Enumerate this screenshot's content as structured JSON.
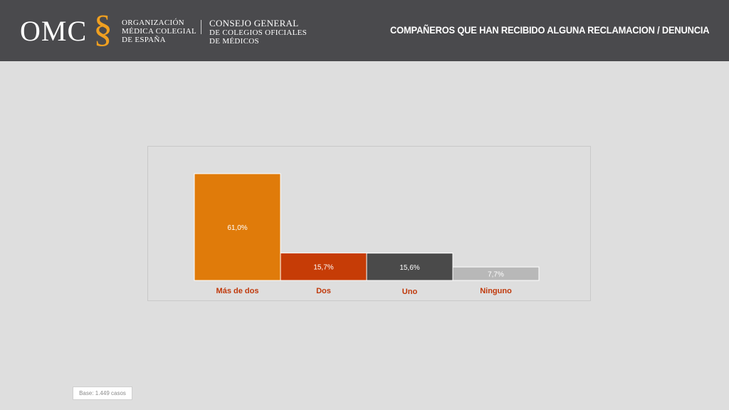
{
  "header": {
    "logo_text": "OMC",
    "logo_symbol": "§",
    "org_left": [
      "ORGANIZACIÓN",
      "MÉDICA COLEGIAL",
      "DE ESPAÑA"
    ],
    "org_right_title": "CONSEJO GENERAL",
    "org_right_lines": [
      "DE COLEGIOS OFICIALES",
      "DE MÉDICOS"
    ],
    "title": "COMPAÑEROS QUE HAN RECIBIDO ALGUNA RECLAMACION / DENUNCIA"
  },
  "footer": {
    "base_note": "Base: 1.449 casos"
  },
  "colors": {
    "header_bg": "#4a4a4d",
    "background": "#dedede",
    "category_label": "#c0390b"
  },
  "chart_data": {
    "type": "bar",
    "categories": [
      "Más de dos",
      "Dos",
      "Uno",
      "Ninguno"
    ],
    "values": [
      61.0,
      15.7,
      15.6,
      7.7
    ],
    "value_labels": [
      "61,0%",
      "15,7%",
      "15,6%",
      "7,7%"
    ],
    "colors": [
      "#e07b0a",
      "#c63c06",
      "#4a4a4a",
      "#b8b8b8"
    ],
    "ylim": [
      0,
      61
    ],
    "legend": "none",
    "grid": false
  }
}
